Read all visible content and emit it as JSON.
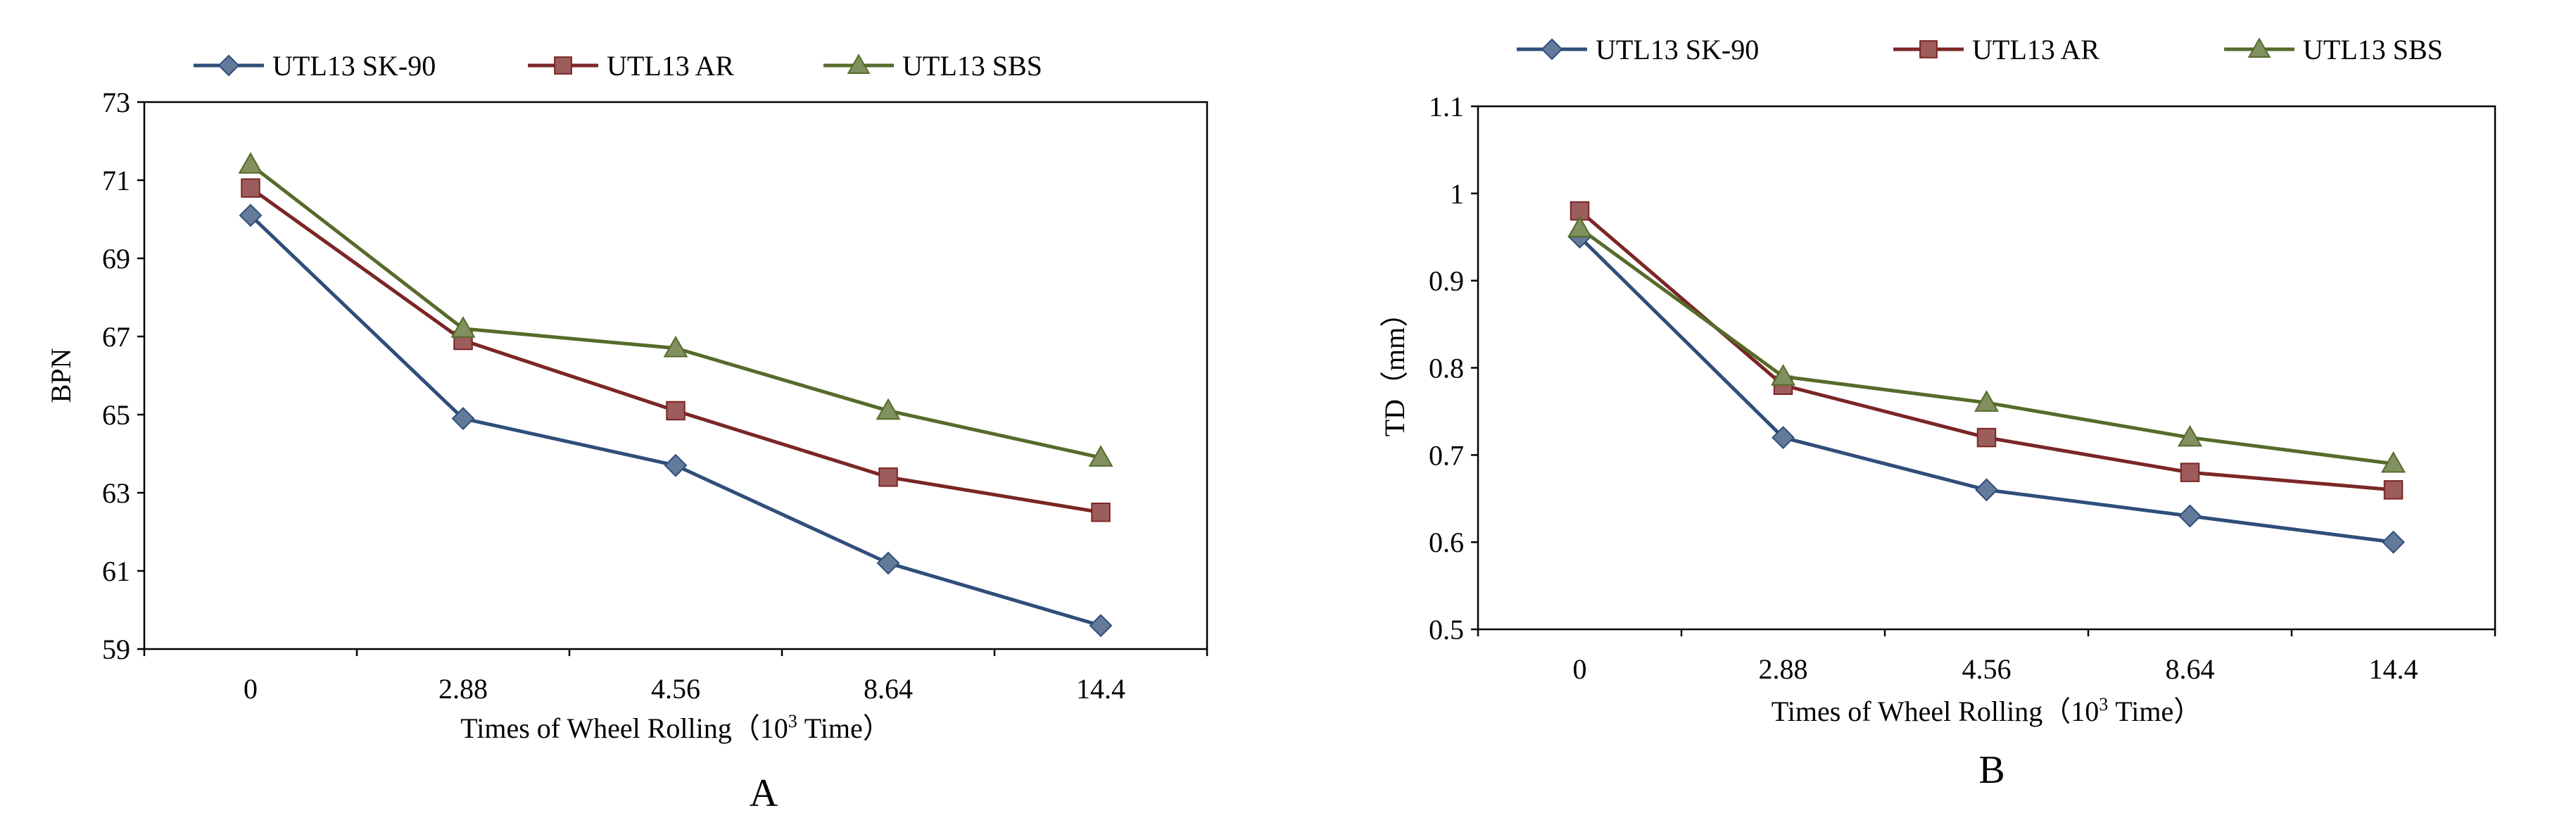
{
  "chart_data": [
    {
      "type": "line",
      "panel_label": "A",
      "title": "",
      "xlabel": "Times of Wheel Rolling（10",
      "xlabel_sup": "3",
      "xlabel_tail": " Time）",
      "ylabel": "BPN",
      "categories": [
        "0",
        "2.88",
        "4.56",
        "8.64",
        "14.4"
      ],
      "ylim": [
        59,
        73
      ],
      "yticks": [
        "59",
        "61",
        "63",
        "65",
        "67",
        "69",
        "71",
        "73"
      ],
      "legend_position": "top",
      "series": [
        {
          "name": "UTL13 SK-90",
          "color": "#2F4E7A",
          "marker": "diamond",
          "values": [
            70.1,
            64.9,
            63.7,
            61.2,
            59.6
          ]
        },
        {
          "name": "UTL13 AR",
          "color": "#7B2626",
          "marker": "square",
          "values": [
            70.8,
            66.9,
            65.1,
            63.4,
            62.5
          ]
        },
        {
          "name": "UTL13 SBS",
          "color": "#566B2A",
          "marker": "triangle",
          "values": [
            71.4,
            67.2,
            66.7,
            65.1,
            63.9
          ]
        }
      ]
    },
    {
      "type": "line",
      "panel_label": "B",
      "title": "",
      "xlabel": "Times of Wheel Rolling（10",
      "xlabel_sup": "3",
      "xlabel_tail": " Time）",
      "ylabel": "TD（mm）",
      "categories": [
        "0",
        "2.88",
        "4.56",
        "8.64",
        "14.4"
      ],
      "ylim": [
        0.5,
        1.1
      ],
      "yticks": [
        "0.5",
        "0.6",
        "0.7",
        "0.8",
        "0.9",
        "1",
        "1.1"
      ],
      "legend_position": "top",
      "series": [
        {
          "name": "UTL13 SK-90",
          "color": "#2F4E7A",
          "marker": "diamond",
          "values": [
            0.95,
            0.72,
            0.66,
            0.63,
            0.6
          ]
        },
        {
          "name": "UTL13 AR",
          "color": "#7B2626",
          "marker": "square",
          "values": [
            0.98,
            0.78,
            0.72,
            0.68,
            0.66
          ]
        },
        {
          "name": "UTL13 SBS",
          "color": "#566B2A",
          "marker": "triangle",
          "values": [
            0.96,
            0.79,
            0.76,
            0.72,
            0.69
          ]
        }
      ]
    }
  ]
}
